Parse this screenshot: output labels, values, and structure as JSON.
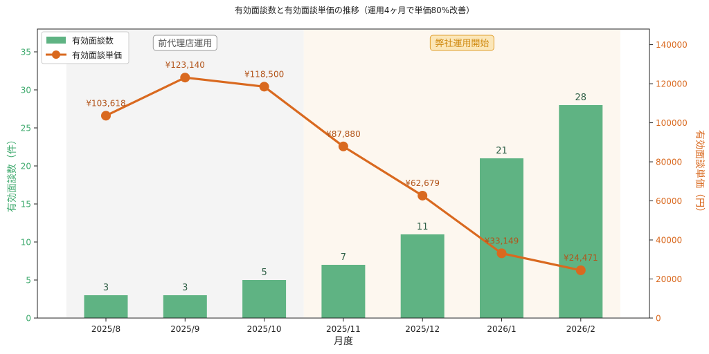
{
  "chart_data": {
    "type": "bar+line",
    "title": "有効面談数と有効面談単価の推移（運用4ヶ月で単価80%改善）",
    "xlabel": "月度",
    "ylabel_left": "有効面談数（件）",
    "ylabel_right": "有効面談単価（円）",
    "categories": [
      "2025/8",
      "2025/9",
      "2025/10",
      "2025/11",
      "2025/12",
      "2026/1",
      "2026/2"
    ],
    "ylim_left": [
      0,
      38
    ],
    "yticks_left": [
      "0",
      "5",
      "10",
      "15",
      "20",
      "25",
      "30",
      "35"
    ],
    "ylim_right": [
      0,
      148000
    ],
    "yticks_right": [
      "0",
      "20000",
      "40000",
      "60000",
      "80000",
      "100000",
      "120000",
      "140000"
    ],
    "series": [
      {
        "name": "有効面談数",
        "kind": "bar",
        "axis": "left",
        "color": "#5fb383",
        "values": [
          3,
          3,
          5,
          7,
          11,
          21,
          28
        ],
        "labels": [
          "3",
          "3",
          "5",
          "7",
          "11",
          "21",
          "28"
        ]
      },
      {
        "name": "有効面談単価",
        "kind": "line",
        "axis": "right",
        "color": "#d9691f",
        "values": [
          103618,
          123140,
          118500,
          87880,
          62679,
          33149,
          24471
        ],
        "labels": [
          "¥103,618",
          "¥123,140",
          "¥118,500",
          "¥87,880",
          "¥62,679",
          "¥33,149",
          "¥24,471"
        ]
      }
    ],
    "regions": [
      {
        "label": "前代理店運用",
        "from_index": 0,
        "to_index": 2,
        "color": "#f4f4f4"
      },
      {
        "label": "弊社運用開始",
        "from_index": 3,
        "to_index": 6,
        "color": "#fdf7ef"
      }
    ],
    "legend_position": "top-left",
    "grid": false,
    "left_axis_color": "#3faa6e",
    "right_axis_color": "#d9691f"
  }
}
